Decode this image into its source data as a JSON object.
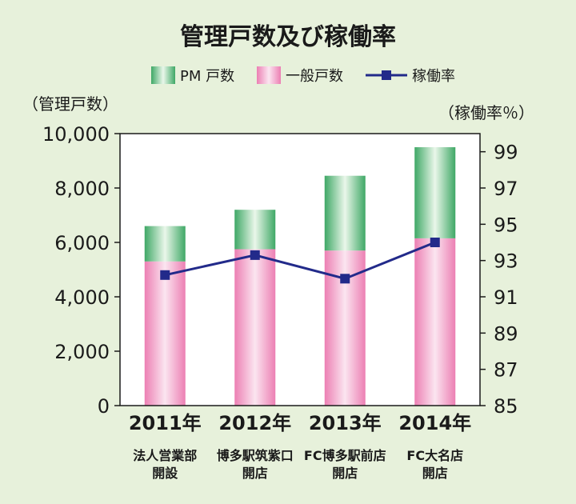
{
  "chart_data": {
    "type": "bar",
    "title": "管理戸数及び稼働率",
    "categories": [
      "2011年",
      "2012年",
      "2013年",
      "2014年"
    ],
    "category_sublabels": [
      [
        "法人営業部",
        "開設"
      ],
      [
        "博多駅筑紫口",
        "開店"
      ],
      [
        "FC博多駅前店",
        "開店"
      ],
      [
        "FC大名店",
        "開店"
      ]
    ],
    "stacked": true,
    "series": [
      {
        "name": "一般戸数",
        "type": "bar",
        "axis": "left",
        "values": [
          5300,
          5750,
          5700,
          6150
        ]
      },
      {
        "name": "PM 戸数",
        "type": "bar",
        "axis": "left",
        "values": [
          1300,
          1450,
          2750,
          3350
        ]
      },
      {
        "name": "稼働率",
        "type": "line",
        "axis": "right",
        "values": [
          92.2,
          93.3,
          92.0,
          94.0
        ]
      }
    ],
    "legend_order": [
      "PM 戸数",
      "一般戸数",
      "稼働率"
    ],
    "ylabel": "（管理戸数）",
    "ylim": [
      0,
      10000
    ],
    "yticks": [
      "0",
      "2,000",
      "4,000",
      "6,000",
      "8,000",
      "10,000"
    ],
    "y2label": "（稼働率％）",
    "y2lim": [
      85,
      100
    ],
    "y2ticks": [
      "85",
      "87",
      "89",
      "91",
      "93",
      "95",
      "97",
      "99"
    ],
    "legend_position": "top-center",
    "grid": false,
    "colors": {
      "pm_light": "#eaf7ea",
      "pm_dark": "#3fa866",
      "general_light": "#fbe5f0",
      "general_dark": "#ec7fb3",
      "line": "#222a8a",
      "background": "#e7f1db",
      "plot_background": "#ffffff"
    }
  }
}
